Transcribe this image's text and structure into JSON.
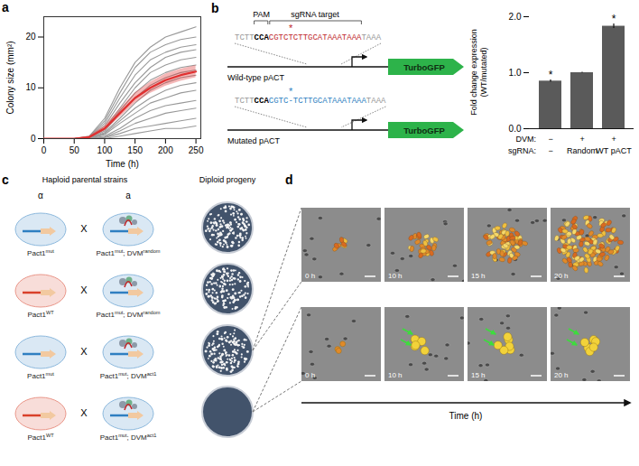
{
  "panel_labels": [
    "a",
    "b",
    "c",
    "d"
  ],
  "chart_data": [
    {
      "type": "line",
      "xlabel": "Time (h)",
      "ylabel": "Colony size (mm²)",
      "x": [
        0,
        50,
        75,
        100,
        125,
        150,
        175,
        200,
        225,
        250
      ],
      "xlim": [
        0,
        258
      ],
      "xticks": [
        0,
        50,
        100,
        150,
        200,
        250
      ],
      "ylim": [
        0,
        24
      ],
      "yticks": [
        0,
        10,
        20
      ],
      "series": [
        {
          "color": "#999999",
          "values": [
            0,
            0,
            0.5,
            4,
            10,
            15,
            18,
            20,
            21,
            22
          ]
        },
        {
          "color": "#999999",
          "values": [
            0,
            0,
            0.4,
            3.5,
            9,
            14,
            17,
            18.5,
            19.5,
            20
          ]
        },
        {
          "color": "#999999",
          "values": [
            0,
            0,
            0.3,
            3,
            8,
            12.5,
            15.5,
            17,
            18,
            18.5
          ]
        },
        {
          "color": "#999999",
          "values": [
            0,
            0,
            0.2,
            2.5,
            7,
            11,
            14,
            16,
            17,
            17.5
          ]
        },
        {
          "color": "#999999",
          "values": [
            0,
            0,
            0.2,
            2,
            6,
            10,
            13,
            14.5,
            15.5,
            16
          ]
        },
        {
          "color": "#999999",
          "values": [
            0,
            0,
            0.1,
            1.8,
            5.5,
            9,
            11.5,
            13,
            14,
            14.5
          ]
        },
        {
          "color": "#999999",
          "values": [
            0,
            0,
            0,
            1.5,
            5,
            8,
            10.5,
            12,
            13,
            13.5
          ]
        },
        {
          "color": "#999999",
          "values": [
            0,
            0,
            0,
            1.2,
            4,
            7,
            9.5,
            11,
            12,
            12.5
          ]
        },
        {
          "color": "#999999",
          "values": [
            0,
            0,
            0,
            1,
            3.5,
            6,
            8,
            9.5,
            10.5,
            11
          ]
        },
        {
          "color": "#999999",
          "values": [
            0,
            0,
            0,
            0.8,
            3,
            5,
            7,
            8,
            9,
            9.5
          ]
        },
        {
          "color": "#999999",
          "values": [
            0,
            0,
            0,
            0.5,
            2,
            4,
            5.5,
            6.5,
            7,
            7.5
          ]
        },
        {
          "color": "#999999",
          "values": [
            0,
            0,
            0,
            0.3,
            1.5,
            3,
            4,
            5,
            5.5,
            6
          ]
        },
        {
          "color": "#999999",
          "values": [
            0,
            0,
            0,
            0.2,
            1,
            2,
            2.5,
            3,
            3.5,
            4
          ]
        },
        {
          "color": "#999999",
          "values": [
            0,
            0,
            0,
            0,
            0.5,
            1,
            1.5,
            2,
            2,
            2.5
          ]
        },
        {
          "color": "#e03030",
          "values": [
            0,
            0,
            0.3,
            2,
            5,
            8,
            10,
            11.5,
            12.5,
            13.2
          ],
          "errors": [
            0,
            0,
            0.2,
            0.5,
            0.8,
            1,
            1.1,
            1.2,
            1.2,
            1.2
          ]
        },
        {
          "color": "#2ca02c",
          "values": [
            0,
            0,
            0,
            0,
            0,
            0,
            0,
            0,
            0,
            0
          ]
        }
      ]
    },
    {
      "type": "bar",
      "ylabel": "Fold change expression (WT/mutated)",
      "categories": [
        null,
        null,
        null
      ],
      "values": [
        0.85,
        1.0,
        1.83
      ],
      "errors": [
        0.02,
        0.01,
        0.04
      ],
      "significance": [
        "*",
        null,
        "*"
      ],
      "color": "#5a5a5a",
      "ylim": [
        0,
        2
      ],
      "yticks": [
        0,
        1,
        2
      ],
      "tick_labels": "y",
      "x_rows": [
        {
          "label": "DVM:",
          "values": [
            "−",
            "+",
            "+"
          ]
        },
        {
          "label": "sgRNA:",
          "values": [
            "−",
            "Random",
            "WT pACT"
          ]
        }
      ]
    }
  ],
  "diagram_b": {
    "pam_label": "PAM",
    "target_label": "sgRNA target",
    "reporter": "TurboGFP",
    "sequences": [
      {
        "label": "Wild-type pACT",
        "segments": [
          {
            "text": "TCTT",
            "color": "#999999"
          },
          {
            "text": "CCA",
            "color": "#000000"
          },
          {
            "text": "CGTC",
            "color": "#c0282d"
          },
          {
            "text": "T",
            "color": "#c0282d",
            "mark": "*"
          },
          {
            "text": "CTTGCATAAATAAA",
            "color": "#c0282d"
          },
          {
            "text": "TAAA",
            "color": "#999999"
          }
        ]
      },
      {
        "label": "Mutated pACT",
        "segments": [
          {
            "text": "TCTT",
            "color": "#999999"
          },
          {
            "text": "CCA",
            "color": "#000000"
          },
          {
            "text": "CGTC",
            "color": "#2f7fc1"
          },
          {
            "text": "-",
            "color": "#2f7fc1",
            "mark": "*"
          },
          {
            "text": "TCTTGCATAAATAAA",
            "color": "#2f7fc1"
          },
          {
            "text": "TAAA",
            "color": "#999999"
          }
        ]
      }
    ]
  },
  "diagram_c": {
    "left_title": "Haploid parental strains",
    "right_title": "Diploid progeny",
    "mating_types": [
      "α",
      "a"
    ],
    "cross_symbol": "X",
    "crosses": [
      {
        "left": [
          {
            "text": "Pact1",
            "sup": "mut"
          }
        ],
        "left_color": "#2f7fc1",
        "right": [
          {
            "text": "Pact1",
            "sup": "mut"
          },
          {
            "text": "; DVM",
            "sup": "random"
          }
        ],
        "right_color": "#2f7fc1",
        "colonies": true
      },
      {
        "left": [
          {
            "text": "Pact1",
            "sup": "WT"
          }
        ],
        "left_color": "#d9412b",
        "right": [
          {
            "text": "Pact1",
            "sup": "mut"
          },
          {
            "text": "; DVM",
            "sup": "random"
          }
        ],
        "right_color": "#2f7fc1",
        "colonies": true
      },
      {
        "left": [
          {
            "text": "Pact1",
            "sup": "mut"
          }
        ],
        "left_color": "#2f7fc1",
        "right": [
          {
            "text": "Pact1",
            "sup": "mut"
          },
          {
            "text": "; DVM",
            "sup": "act1"
          }
        ],
        "right_color": "#2f7fc1",
        "colonies": true
      },
      {
        "left": [
          {
            "text": "Pact1",
            "sup": "WT"
          }
        ],
        "left_color": "#d9412b",
        "right": [
          {
            "text": "Pact1",
            "sup": "mut"
          },
          {
            "text": "; DVM",
            "sup": "act1"
          }
        ],
        "right_color": "#2f7fc1",
        "colonies": false
      }
    ]
  },
  "panel_d": {
    "times": [
      "0 h",
      "10 h",
      "15 h",
      "20 h"
    ],
    "axis_label": "Time (h)"
  }
}
